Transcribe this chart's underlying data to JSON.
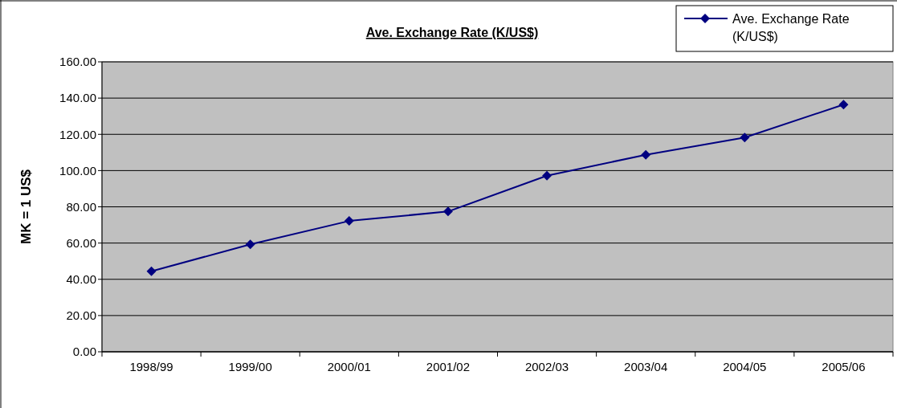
{
  "chart_data": {
    "type": "line",
    "title": "Ave. Exchange Rate (K/US$)",
    "ylabel": "MK = 1 US$",
    "categories": [
      "1998/99",
      "1999/00",
      "2000/01",
      "2001/02",
      "2002/03",
      "2003/04",
      "2004/05",
      "2005/06"
    ],
    "series": [
      {
        "name": "Ave. Exchange Rate (K/US$)",
        "color": "#000080",
        "values": [
          44.4,
          59.3,
          72.2,
          77.4,
          97.2,
          108.7,
          118.2,
          136.4
        ]
      }
    ],
    "ylim": [
      0,
      160
    ],
    "yticks": [
      {
        "value": 0,
        "label": "0.00"
      },
      {
        "value": 20,
        "label": "20.00"
      },
      {
        "value": 40,
        "label": "40.00"
      },
      {
        "value": 60,
        "label": "60.00"
      },
      {
        "value": 80,
        "label": "80.00"
      },
      {
        "value": 100,
        "label": "100.00"
      },
      {
        "value": 120,
        "label": "120.00"
      },
      {
        "value": 140,
        "label": "140.00"
      },
      {
        "value": 160,
        "label": "160.00"
      }
    ],
    "grid": "y",
    "legend": "top right",
    "marker": "diamond",
    "line_style": "solid"
  }
}
